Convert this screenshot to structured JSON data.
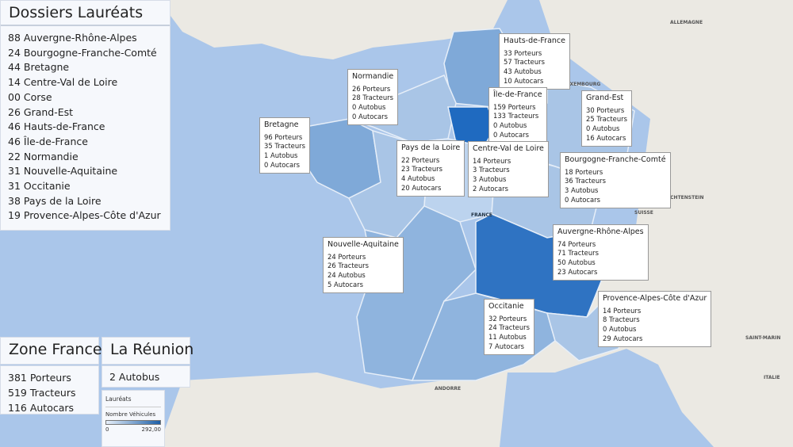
{
  "colors": {
    "sea": "#aac6ea",
    "land": "#ebe9e3",
    "region_light": "#a9c5e6",
    "region_mid": "#7fa9d8",
    "region_dark": "#2f73c2"
  },
  "dossiers": {
    "title": "Dossiers Lauréats",
    "items": [
      "88 Auvergne-Rhône-Alpes",
      "24 Bourgogne-Franche-Comté",
      "44 Bretagne",
      "14 Centre-Val de Loire",
      "00 Corse",
      "26 Grand-Est",
      "46 Hauts-de-France",
      "46 Île-de-France",
      "22 Normandie",
      "31 Nouvelle-Aquitaine",
      "31 Occitanie",
      "38 Pays de la Loire",
      "19 Provence-Alpes-Côte d'Azur"
    ]
  },
  "zone_france": {
    "title": "Zone France",
    "items": [
      "381 Porteurs",
      "519 Tracteurs",
      "116 Autocars"
    ]
  },
  "reunion": {
    "title": "La Réunion",
    "value": "2 Autobus"
  },
  "legend": {
    "title": "Lauréats",
    "subtitle": "Nombre Véhicules",
    "min": "0",
    "max": "292,00"
  },
  "map_labels": [
    "ALLEMAGNE",
    "LUXEMBOURG",
    "LIECHTENSTEIN",
    "SUISSE",
    "ITALIE",
    "SAINT-MARIN",
    "ANDORRE",
    "FRANCE"
  ],
  "callouts": [
    {
      "name": "Bretagne",
      "lines": [
        "96 Porteurs",
        "35 Tracteurs",
        "1 Autobus",
        "0 Autocars"
      ]
    },
    {
      "name": "Normandie",
      "lines": [
        "26 Porteurs",
        "28 Tracteurs",
        "0 Autobus",
        "0 Autocars"
      ]
    },
    {
      "name": "Hauts-de-France",
      "lines": [
        "33 Porteurs",
        "57 Tracteurs",
        "43 Autobus",
        "10 Autocars"
      ]
    },
    {
      "name": "Île-de-France",
      "lines": [
        "159 Porteurs",
        "133 Tracteurs",
        "0 Autobus",
        "0 Autocars"
      ]
    },
    {
      "name": "Grand-Est",
      "lines": [
        "30 Porteurs",
        "25 Tracteurs",
        "0 Autobus",
        "16 Autocars"
      ]
    },
    {
      "name": "Pays de la Loire",
      "lines": [
        "22 Porteurs",
        "23 Tracteurs",
        "4 Autobus",
        "20 Autocars"
      ]
    },
    {
      "name": "Centre-Val de Loire",
      "lines": [
        "14 Porteurs",
        "3 Tracteurs",
        "3 Autobus",
        "2 Autocars"
      ]
    },
    {
      "name": "Bourgogne-Franche-Comté",
      "lines": [
        "18 Porteurs",
        "36 Tracteurs",
        "3 Autobus",
        "0 Autocars"
      ]
    },
    {
      "name": "Nouvelle-Aquitaine",
      "lines": [
        "24 Porteurs",
        "26 Tracteurs",
        "24 Autobus",
        "5 Autocars"
      ]
    },
    {
      "name": "Auvergne-Rhône-Alpes",
      "lines": [
        "74 Porteurs",
        "71 Tracteurs",
        "50 Autobus",
        "23 Autocars"
      ]
    },
    {
      "name": "Occitanie",
      "lines": [
        "32 Porteurs",
        "24 Tracteurs",
        "11 Autobus",
        "7 Autocars"
      ]
    },
    {
      "name": "Provence-Alpes-Côte d'Azur",
      "lines": [
        "14 Porteurs",
        "8 Tracteurs",
        "0 Autobus",
        "29 Autocars"
      ]
    }
  ]
}
